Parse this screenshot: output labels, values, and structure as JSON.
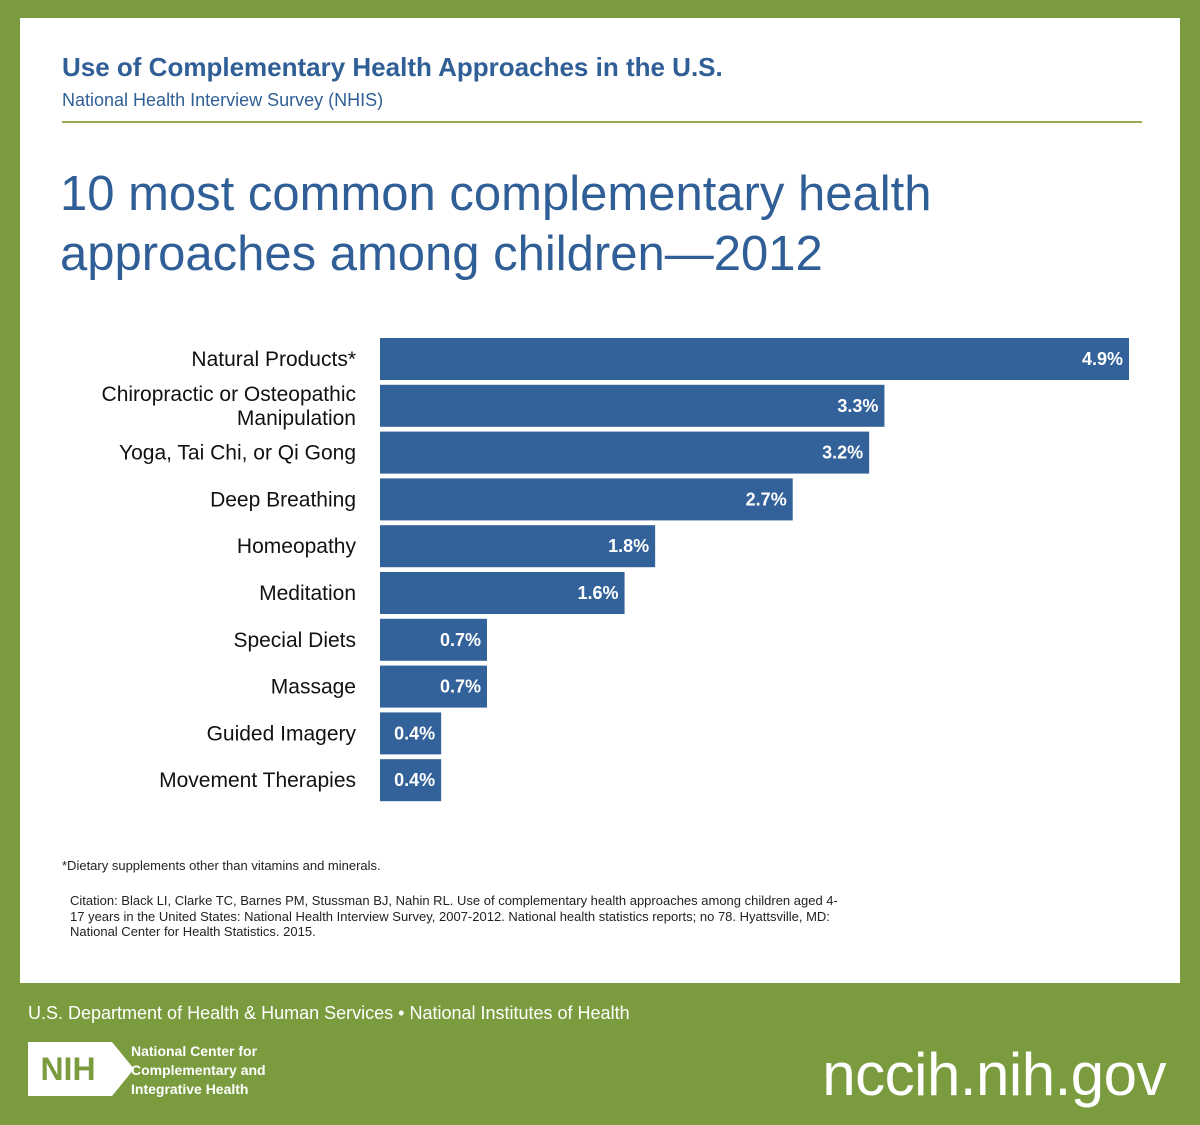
{
  "header": {
    "title": "Use of Complementary Health Approaches in the U.S.",
    "subtitle": "National Health Interview Survey (NHIS)"
  },
  "chart_data": {
    "type": "bar",
    "orientation": "horizontal",
    "title_lines": [
      "10 most common complementary health",
      "approaches among children—2012"
    ],
    "categories": [
      [
        "Natural Products*"
      ],
      [
        "Chiropractic or Osteopathic",
        "Manipulation"
      ],
      [
        "Yoga, Tai Chi, or Qi Gong"
      ],
      [
        "Deep Breathing"
      ],
      [
        "Homeopathy"
      ],
      [
        "Meditation"
      ],
      [
        "Special Diets"
      ],
      [
        "Massage"
      ],
      [
        "Guided Imagery"
      ],
      [
        "Movement Therapies"
      ]
    ],
    "values": [
      4.9,
      3.3,
      3.2,
      2.7,
      1.8,
      1.6,
      0.7,
      0.7,
      0.4,
      0.4
    ],
    "value_labels": [
      "4.9%",
      "3.3%",
      "3.2%",
      "2.7%",
      "1.8%",
      "1.6%",
      "0.7%",
      "0.7%",
      "0.4%",
      "0.4%"
    ],
    "xlim": [
      0,
      4.9
    ],
    "xlabel": "",
    "ylabel": "",
    "grid": false,
    "bar_color": "#33619a"
  },
  "footnote": "*Dietary supplements other than vitamins and minerals.",
  "citation": "Citation: Black LI, Clarke TC, Barnes PM, Stussman BJ, Nahin RL. Use of complementary health approaches among children aged 4-17 years in the United States: National Health Interview Survey, 2007-2012. National health statistics reports; no 78. Hyattsville, MD: National Center for Health Statistics. 2015.",
  "footer": {
    "departments": "U.S. Department of Health & Human Services • National Institutes of Health",
    "logo_text": "NIH",
    "center_name_lines": [
      "National Center for",
      "Complementary and",
      "Integrative Health"
    ],
    "website": "nccih.nih.gov"
  },
  "colors": {
    "brand_blue": "#2f5f96",
    "bar_blue": "#33619a",
    "frame_green": "#7a9c3e"
  }
}
